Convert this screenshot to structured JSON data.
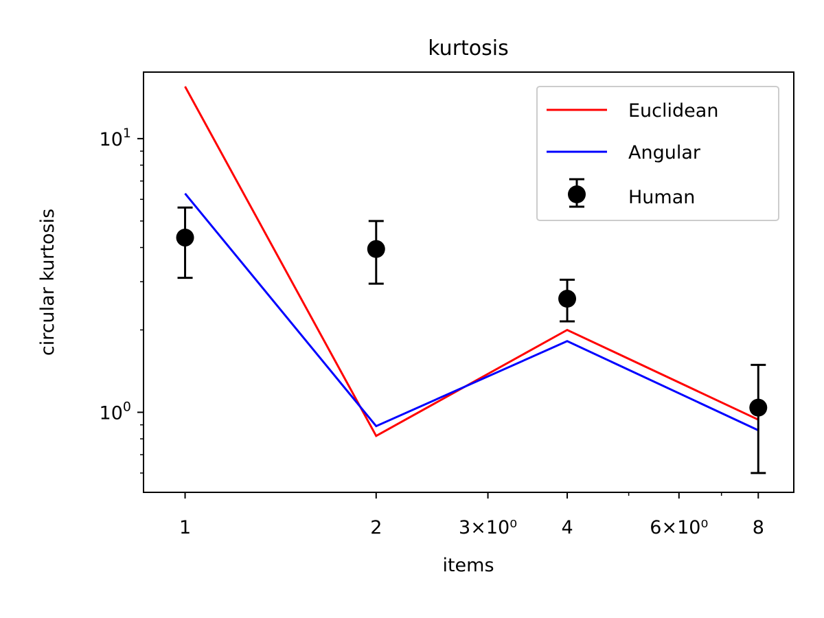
{
  "chart_data": {
    "type": "line",
    "title": "kurtosis",
    "xlabel": "items",
    "ylabel": "circular kurtosis",
    "xscale": "log",
    "yscale": "log",
    "x": [
      1,
      2,
      4,
      8
    ],
    "xlim": [
      0.86,
      9.1
    ],
    "ylim": [
      0.51,
      17.5
    ],
    "x_ticks": [
      {
        "value": 1,
        "label": "1"
      },
      {
        "value": 2,
        "label": "2"
      },
      {
        "value": 3,
        "label": "3×10⁰"
      },
      {
        "value": 4,
        "label": "4"
      },
      {
        "value": 6,
        "label": "6×10⁰"
      },
      {
        "value": 8,
        "label": "8"
      }
    ],
    "x_minor_ticks": [
      5,
      7
    ],
    "y_ticks": [
      {
        "value": 1,
        "label_base": "10",
        "label_exp": "0"
      },
      {
        "value": 10,
        "label_base": "10",
        "label_exp": "1"
      }
    ],
    "y_minor_ticks": [
      0.6,
      0.7,
      0.8,
      0.9,
      2,
      3,
      4,
      5,
      6,
      7,
      8,
      9
    ],
    "series": [
      {
        "name": "Euclidean",
        "kind": "line",
        "color": "#ff0000",
        "values": [
          15.5,
          0.82,
          2.0,
          0.94
        ]
      },
      {
        "name": "Angular",
        "kind": "line",
        "color": "#0000ff",
        "values": [
          6.3,
          0.89,
          1.82,
          0.86
        ]
      },
      {
        "name": "Human",
        "kind": "errorbar",
        "color": "#000000",
        "values": [
          4.35,
          3.95,
          2.6,
          1.04
        ],
        "lower": [
          3.1,
          2.95,
          2.15,
          0.6
        ],
        "upper": [
          5.6,
          5.0,
          3.05,
          1.49
        ]
      }
    ],
    "legend": {
      "position": "top-right",
      "entries": [
        "Euclidean",
        "Angular",
        "Human"
      ]
    },
    "grid": false
  }
}
